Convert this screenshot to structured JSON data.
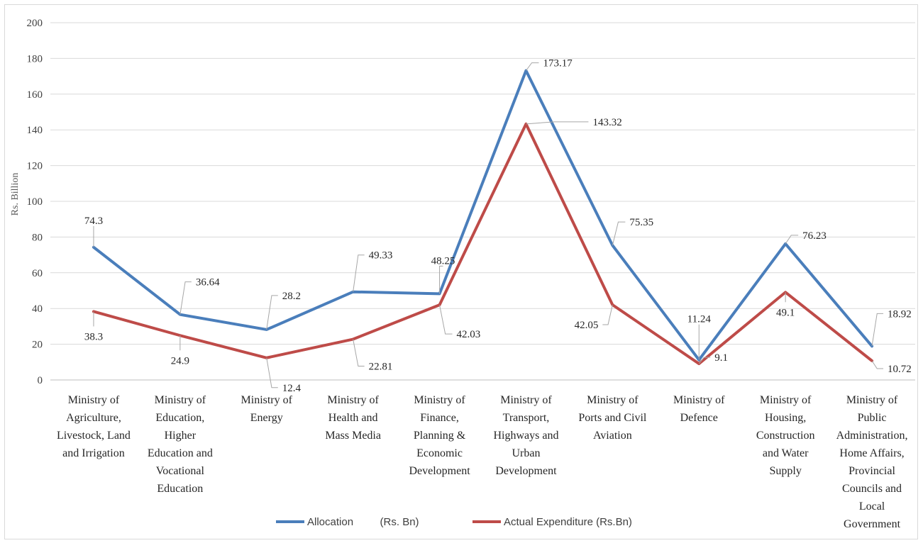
{
  "chart_data": {
    "type": "line",
    "ylabel": "Rs. Billion",
    "ylim": [
      0,
      200
    ],
    "ytick_step": 20,
    "grid": true,
    "legend_position": "bottom",
    "categories": [
      [
        "Ministry of",
        "Agriculture,",
        "Livestock, Land",
        "and Irrigation"
      ],
      [
        "Ministry of",
        "Education,",
        "Higher",
        "Education and",
        "Vocational",
        "Education"
      ],
      [
        "Ministry of",
        "Energy"
      ],
      [
        "Ministry of",
        "Health and",
        "Mass Media"
      ],
      [
        "Ministry of",
        "Finance,",
        "Planning &",
        "Economic",
        "Development"
      ],
      [
        "Ministry of",
        "Transport,",
        "Highways and",
        "Urban",
        "Development"
      ],
      [
        "Ministry of",
        "Ports and Civil",
        "Aviation"
      ],
      [
        "Ministry of",
        "Defence"
      ],
      [
        "Ministry of",
        "Housing,",
        "Construction",
        "and Water",
        "Supply"
      ],
      [
        "Ministry of",
        "Public",
        "Administration,",
        "Home Affairs,",
        "Provincial",
        "Councils and",
        "Local",
        "Government"
      ]
    ],
    "series": [
      {
        "name": "Allocation         (Rs. Bn)",
        "color": "#4a7ebb",
        "values": [
          74.3,
          36.64,
          28.2,
          49.33,
          48.25,
          173.17,
          75.35,
          11.24,
          76.23,
          18.92
        ],
        "labels": [
          "74.3",
          "36.64",
          "28.2",
          "49.33",
          "48.25",
          "173.17",
          "75.35",
          "11.24",
          "76.23",
          "18.92"
        ]
      },
      {
        "name": "Actual Expenditure (Rs.Bn)",
        "color": "#be4b48",
        "values": [
          38.3,
          24.9,
          12.4,
          22.81,
          42.03,
          143.32,
          42.05,
          9.1,
          49.1,
          10.72
        ],
        "labels": [
          "38.3",
          "24.9",
          "12.4",
          "22.81",
          "42.03",
          "143.32",
          "42.05",
          "9.1",
          "49.1",
          "10.72"
        ]
      }
    ]
  }
}
